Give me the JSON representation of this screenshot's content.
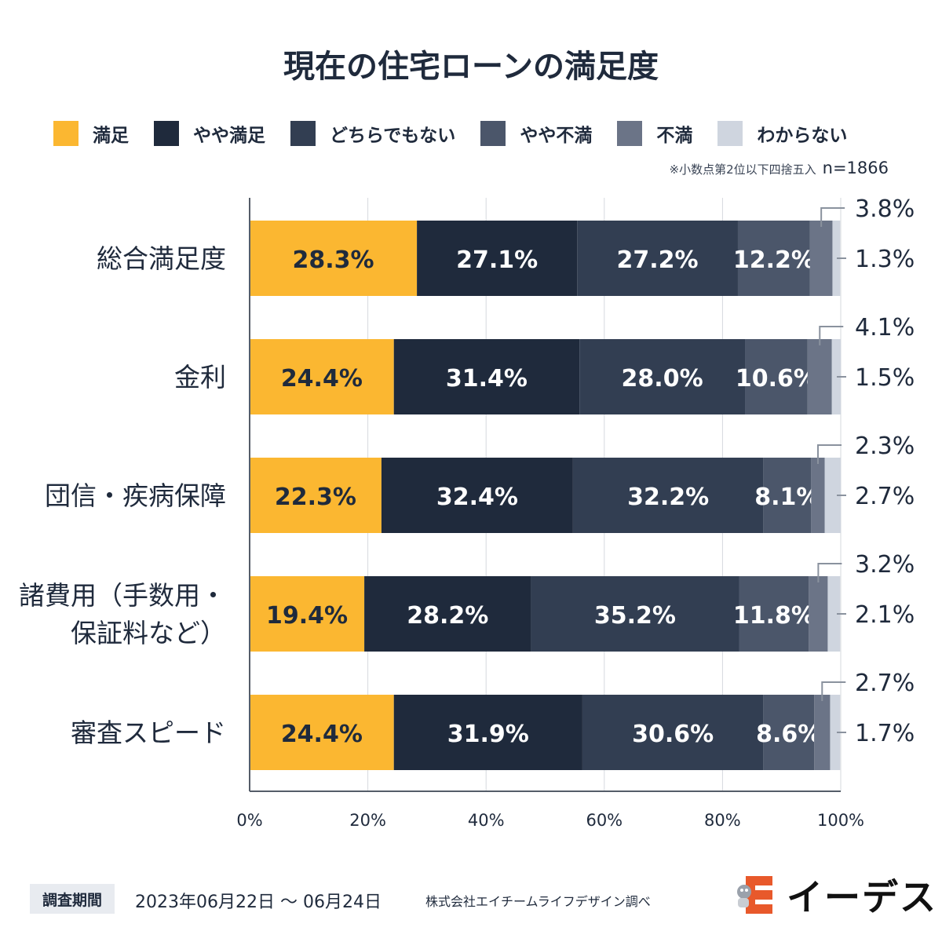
{
  "title": "現在の住宅ローンの満足度",
  "legend": [
    {
      "label": "満足",
      "color": "#fbb731"
    },
    {
      "label": "やや満足",
      "color": "#1f2a3c"
    },
    {
      "label": "どちらでもない",
      "color": "#323e52"
    },
    {
      "label": "やや不満",
      "color": "#4b566a"
    },
    {
      "label": "不満",
      "color": "#6b7487"
    },
    {
      "label": "わからない",
      "color": "#cfd5df"
    }
  ],
  "note": {
    "text": "※小数点第2位以下四捨五入",
    "n": "n=1866"
  },
  "chart_data": {
    "type": "bar",
    "orientation": "horizontal",
    "stacked": true,
    "title": "現在の住宅ローンの満足度",
    "categories": [
      "総合満足度",
      "金利",
      "団信・疾病保障",
      "諸費用（手数用・保証料など）",
      "審査スピード"
    ],
    "category_lines": [
      [
        "総合満足度"
      ],
      [
        "金利"
      ],
      [
        "団信・疾病保障"
      ],
      [
        "諸費用（手数用・",
        "保証料など）"
      ],
      [
        "審査スピード"
      ]
    ],
    "series": [
      {
        "name": "満足",
        "values": [
          28.3,
          24.4,
          22.3,
          19.4,
          24.4
        ],
        "labels": [
          "28.3%",
          "24.4%",
          "22.3%",
          "19.4%",
          "24.4%"
        ]
      },
      {
        "name": "やや満足",
        "values": [
          27.1,
          31.4,
          32.4,
          28.2,
          31.9
        ],
        "labels": [
          "27.1%",
          "31.4%",
          "32.4%",
          "28.2%",
          "31.9%"
        ]
      },
      {
        "name": "どちらでもない",
        "values": [
          27.2,
          28.0,
          32.2,
          35.2,
          30.6
        ],
        "labels": [
          "27.2%",
          "28.0%",
          "32.2%",
          "35.2%",
          "30.6%"
        ]
      },
      {
        "name": "やや不満",
        "values": [
          12.2,
          10.6,
          8.1,
          11.8,
          8.6
        ],
        "labels": [
          "12.2%",
          "10.6%",
          "8.1%",
          "11.8%",
          "8.6%"
        ]
      },
      {
        "name": "不満",
        "values": [
          3.8,
          4.1,
          2.3,
          3.2,
          2.7
        ],
        "labels": [
          "3.8%",
          "4.1%",
          "2.3%",
          "3.2%",
          "2.7%"
        ]
      },
      {
        "name": "わからない",
        "values": [
          1.3,
          1.5,
          2.7,
          2.1,
          1.7
        ],
        "labels": [
          "1.3%",
          "1.5%",
          "2.7%",
          "2.1%",
          "1.7%"
        ]
      }
    ],
    "xlim": [
      0,
      100
    ],
    "xticks": [
      "0%",
      "20%",
      "40%",
      "60%",
      "80%",
      "100%"
    ],
    "grid": true
  },
  "footer": {
    "badge": "調査期間",
    "period": "2023年06月22日 〜 06月24日",
    "company": "株式会社エイチームライフデザイン調べ"
  },
  "logo": {
    "text": "イーデス",
    "icon": "e-mascot-icon"
  }
}
